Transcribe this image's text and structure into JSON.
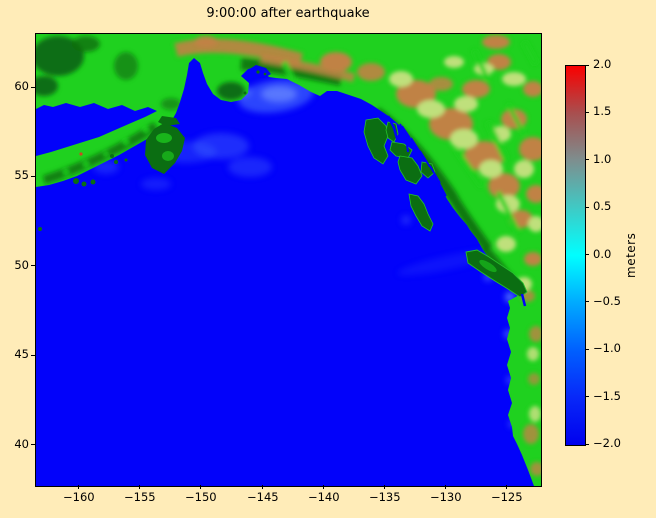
{
  "figure": {
    "title": "9:00:00 after earthquake",
    "background_color": "#ffecb8"
  },
  "axes": {
    "x_ticks": {
      "labels": [
        "−160",
        "−155",
        "−150",
        "−145",
        "−140",
        "−135",
        "−130",
        "−125"
      ],
      "fracs": [
        0.085,
        0.206,
        0.327,
        0.45,
        0.571,
        0.692,
        0.813,
        0.934
      ]
    },
    "y_ticks": {
      "labels": [
        "60",
        "55",
        "50",
        "45",
        "40"
      ],
      "fracs": [
        0.118,
        0.315,
        0.514,
        0.712,
        0.911
      ]
    }
  },
  "colorbar": {
    "label": "meters",
    "tick_labels": [
      "2.0",
      "1.5",
      "1.0",
      "0.5",
      "0.0",
      "−0.5",
      "−1.0",
      "−1.5",
      "−2.0"
    ],
    "stops": [
      {
        "frac": 0.0,
        "color": "#fa0000"
      },
      {
        "frac": 0.125,
        "color": "#a84f4f"
      },
      {
        "frac": 0.25,
        "color": "#7d8f8f"
      },
      {
        "frac": 0.375,
        "color": "#3fcac5"
      },
      {
        "frac": 0.5,
        "color": "#00ffff"
      },
      {
        "frac": 0.625,
        "color": "#00aaff"
      },
      {
        "frac": 0.75,
        "color": "#0060ff"
      },
      {
        "frac": 0.875,
        "color": "#0828f8"
      },
      {
        "frac": 1.0,
        "color": "#0000ee"
      }
    ]
  },
  "map_colors": {
    "ocean": "#0202fa",
    "land_low": "#1fd11f",
    "land_dark": "#0b6e12",
    "land_high": "#c08244",
    "land_pale": "#bfe07c",
    "wave": "#5a86ff",
    "background": "#ffecb8"
  },
  "chart_data": {
    "type": "heatmap",
    "title": "9:00:00 after earthquake",
    "xlabel": "",
    "ylabel": "",
    "xlim": [
      -163.5,
      -122.3
    ],
    "ylim": [
      37.7,
      63.0
    ],
    "x_ticks": [
      -160,
      -155,
      -150,
      -145,
      -140,
      -135,
      -130,
      -125
    ],
    "y_ticks": [
      60,
      55,
      50,
      45,
      40
    ],
    "grid": false,
    "legend": "none",
    "colorbar": {
      "label": "meters",
      "range": [
        -2.0,
        2.0
      ],
      "ticks": [
        2.0,
        1.5,
        1.0,
        0.5,
        0.0,
        -0.5,
        -1.0,
        -1.5,
        -2.0
      ]
    },
    "content": "Tsunami simulation frame 9 hours after earthquake: sea-surface elevation over the Gulf of Alaska and northeast Pacific; ocean rendered flat deep blue, land topography green (low) to brown (high), faint light-blue wavefronts offshore of Kodiak Island, Prince William Sound, the Alaska Peninsula and the British Columbia / Washington coast",
    "visible_features": [
      "Alaska mainland",
      "Alaska Peninsula",
      "Kodiak Island",
      "Cook Inlet",
      "Kenai Peninsula",
      "Prince William Sound",
      "Southeast Alaska panhandle islands",
      "Haida Gwaii",
      "Vancouver Island",
      "British Columbia interior",
      "Washington–Oregon–California coastline"
    ]
  }
}
